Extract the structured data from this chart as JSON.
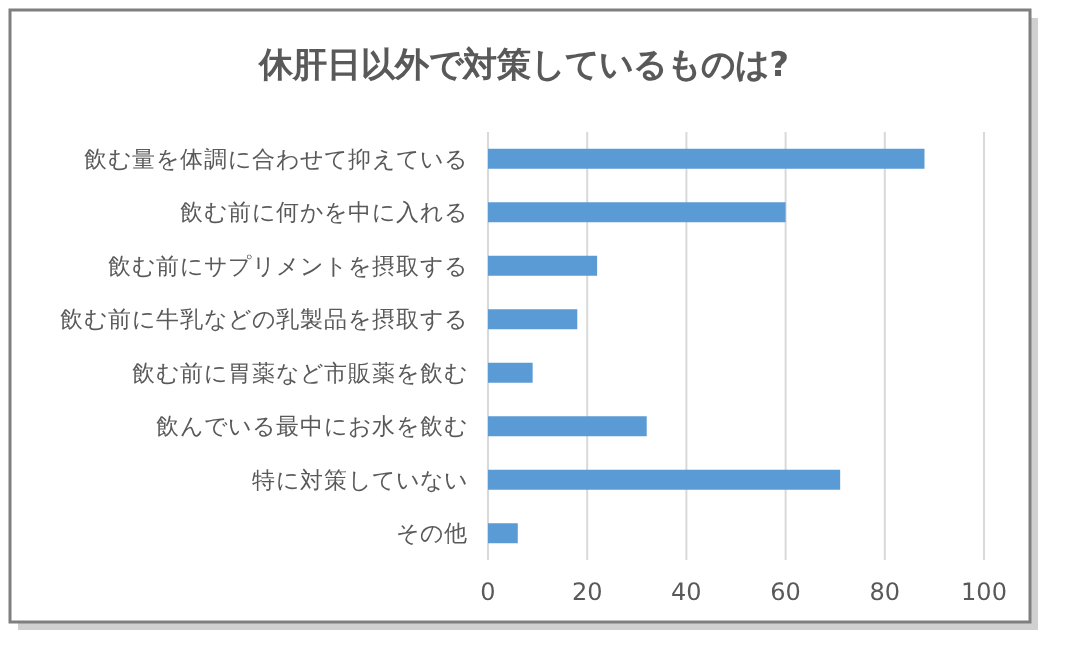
{
  "chart_data": {
    "type": "bar",
    "orientation": "horizontal",
    "title": "休肝日以外で対策しているものは?",
    "categories": [
      "飲む量を体調に合わせて抑えている",
      "飲む前に何かを中に入れる",
      "飲む前にサプリメントを摂取する",
      "飲む前に牛乳などの乳製品を摂取する",
      "飲む前に胃薬など市販薬を飲む",
      "飲んでいる最中にお水を飲む",
      "特に対策していない",
      "その他"
    ],
    "values": [
      88,
      60,
      22,
      18,
      9,
      32,
      71,
      6
    ],
    "color": "#5b9bd5",
    "xlim": [
      0,
      100
    ],
    "xticks": [
      0,
      20,
      40,
      60,
      80,
      100
    ],
    "grid": "x"
  }
}
